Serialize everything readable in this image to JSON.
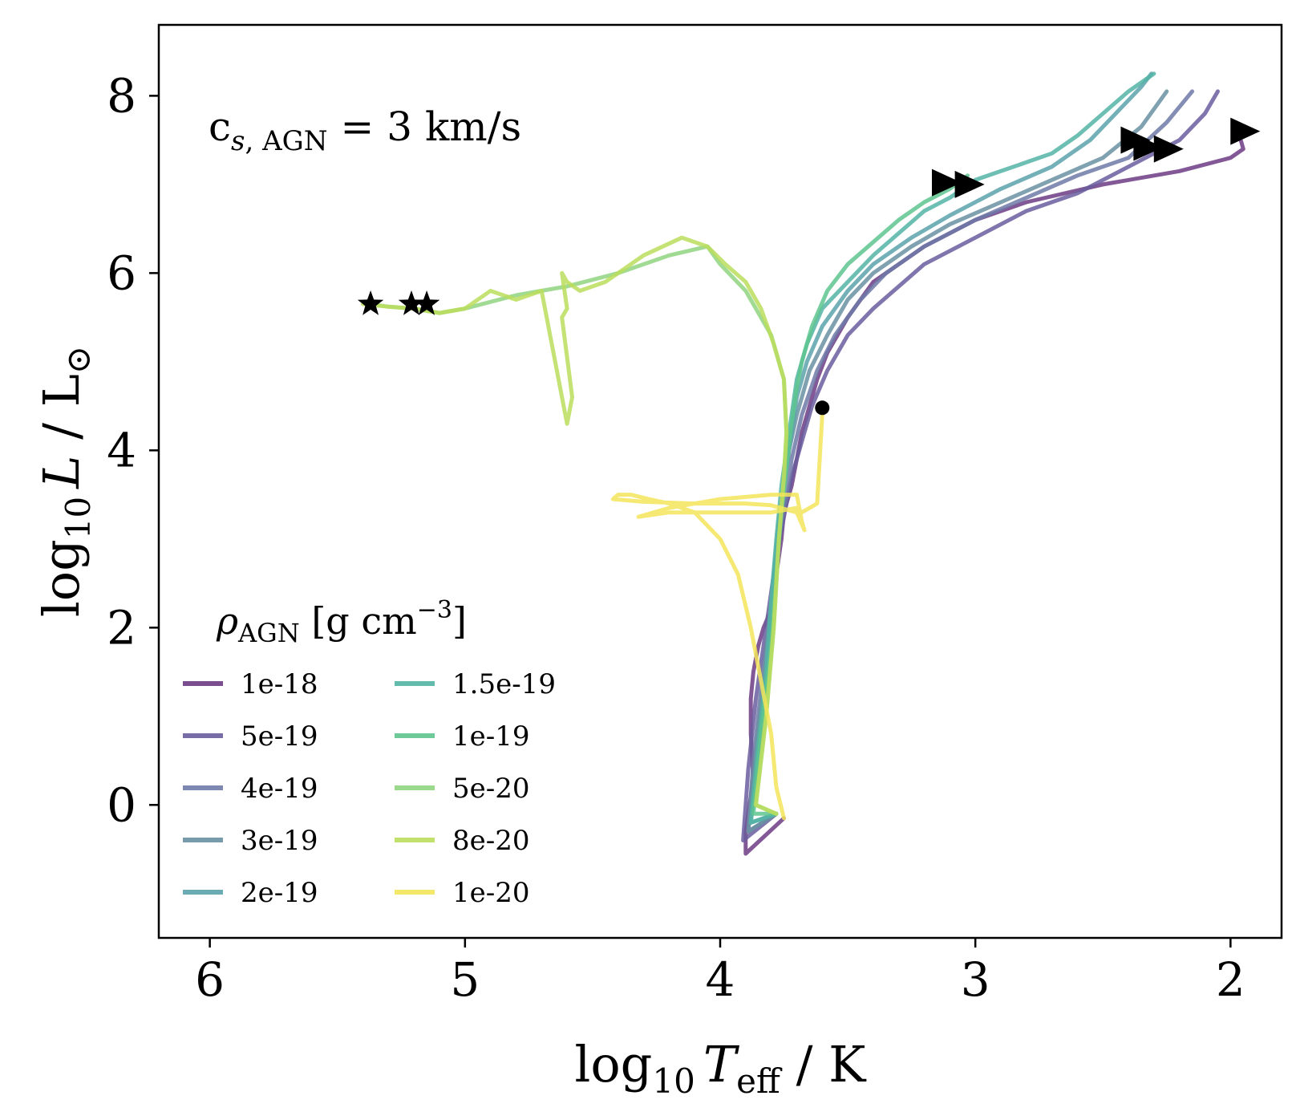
{
  "chart_data": {
    "type": "line",
    "title": "",
    "annotation": {
      "base": "c",
      "sub_italic": "s",
      "sub_rest": ", AGN",
      "rest": " = 3 km/s"
    },
    "xlabel": {
      "prefix": "log",
      "sub": "10",
      "var": "T",
      "var_sub": "eff",
      "suffix": " / K"
    },
    "ylabel": {
      "prefix": "log",
      "sub": "10",
      "var": "L",
      "suffix": " / L",
      "sun": "⊙"
    },
    "xlim": [
      6.2,
      1.8
    ],
    "ylim": [
      -1.5,
      8.8
    ],
    "x_inverted": true,
    "xticks": [
      6,
      5,
      4,
      3,
      2
    ],
    "yticks": [
      0,
      2,
      4,
      6,
      8
    ],
    "x_tick_labels": [
      "6",
      "5",
      "4",
      "3",
      "2"
    ],
    "y_tick_labels": [
      "0",
      "2",
      "4",
      "6",
      "8"
    ],
    "grid": false,
    "legend": {
      "title": {
        "symbol": "ρ",
        "sub": "AGN",
        "unit_open": " [g cm",
        "sup": "−3",
        "unit_close": "]"
      },
      "placement": "lower-left",
      "columns": 2
    },
    "series": [
      {
        "name": "1e-18",
        "color": "#6d3b84",
        "x": [
          3.75,
          3.9,
          3.9,
          3.87,
          3.88,
          3.88,
          3.87,
          3.85,
          3.83,
          3.8,
          3.78,
          3.76,
          3.75,
          3.72,
          3.7,
          3.68,
          3.65,
          3.62,
          3.58,
          3.5,
          3.4,
          3.2,
          3.0,
          2.8,
          2.5,
          2.2,
          2.0,
          1.95,
          1.97
        ],
        "y": [
          -0.15,
          -0.55,
          -0.3,
          0.3,
          0.8,
          1.2,
          1.5,
          1.8,
          2.0,
          2.2,
          2.6,
          3.0,
          3.3,
          3.6,
          3.9,
          4.2,
          4.5,
          4.8,
          5.1,
          5.5,
          5.9,
          6.3,
          6.6,
          6.8,
          7.0,
          7.15,
          7.3,
          7.4,
          7.6
        ]
      },
      {
        "name": "5e-19",
        "color": "#6a5d9e",
        "x": [
          3.78,
          3.91,
          3.89,
          3.86,
          3.84,
          3.82,
          3.8,
          3.78,
          3.76,
          3.74,
          3.72,
          3.68,
          3.64,
          3.58,
          3.5,
          3.4,
          3.2,
          3.0,
          2.8,
          2.6,
          2.4,
          2.2,
          2.1,
          2.05
        ],
        "y": [
          -0.1,
          -0.4,
          0.4,
          1.2,
          1.6,
          2.0,
          2.4,
          2.8,
          3.1,
          3.4,
          3.7,
          4.1,
          4.5,
          4.9,
          5.3,
          5.6,
          6.1,
          6.4,
          6.7,
          6.9,
          7.2,
          7.5,
          7.8,
          8.05
        ]
      },
      {
        "name": "4e-19",
        "color": "#6f7aa8",
        "x": [
          3.78,
          3.89,
          3.87,
          3.84,
          3.82,
          3.8,
          3.78,
          3.76,
          3.74,
          3.72,
          3.68,
          3.62,
          3.55,
          3.45,
          3.35,
          3.2,
          3.0,
          2.8,
          2.6,
          2.4,
          2.25,
          2.15
        ],
        "y": [
          -0.1,
          -0.3,
          0.5,
          1.3,
          1.8,
          2.3,
          2.8,
          3.2,
          3.5,
          3.9,
          4.4,
          4.9,
          5.3,
          5.7,
          6.0,
          6.3,
          6.6,
          6.85,
          7.1,
          7.3,
          7.7,
          8.05
        ]
      },
      {
        "name": "3e-19",
        "color": "#6990a2",
        "x": [
          3.78,
          3.89,
          3.86,
          3.83,
          3.81,
          3.79,
          3.77,
          3.75,
          3.73,
          3.7,
          3.65,
          3.58,
          3.5,
          3.4,
          3.25,
          3.1,
          2.9,
          2.7,
          2.5,
          2.35,
          2.25
        ],
        "y": [
          -0.1,
          -0.3,
          0.6,
          1.4,
          2.0,
          2.6,
          3.2,
          3.6,
          4.0,
          4.4,
          4.9,
          5.3,
          5.7,
          6.0,
          6.3,
          6.55,
          6.8,
          7.05,
          7.3,
          7.65,
          8.05
        ]
      },
      {
        "name": "2e-19",
        "color": "#5aa2ac",
        "x": [
          3.78,
          3.88,
          3.85,
          3.82,
          3.8,
          3.78,
          3.76,
          3.74,
          3.72,
          3.7,
          3.66,
          3.6,
          3.5,
          3.4,
          3.25,
          3.1,
          2.9,
          2.7,
          2.55,
          2.45,
          2.35,
          2.31
        ],
        "y": [
          -0.1,
          -0.2,
          0.6,
          1.4,
          2.1,
          2.8,
          3.4,
          3.8,
          4.2,
          4.6,
          5.0,
          5.4,
          5.8,
          6.1,
          6.4,
          6.65,
          6.95,
          7.2,
          7.5,
          7.8,
          8.1,
          8.25
        ]
      },
      {
        "name": "1.5e-19",
        "color": "#52b4a4",
        "x": [
          3.78,
          3.88,
          3.85,
          3.82,
          3.8,
          3.78,
          3.76,
          3.74,
          3.72,
          3.7,
          3.66,
          3.6,
          3.5,
          3.4,
          3.3,
          3.2,
          3.1,
          3.0,
          2.9,
          2.8,
          2.7,
          2.6,
          2.5,
          2.4,
          2.3
        ],
        "y": [
          -0.1,
          -0.2,
          0.7,
          1.5,
          2.3,
          3.0,
          3.6,
          4.0,
          4.4,
          4.8,
          5.2,
          5.6,
          5.9,
          6.2,
          6.45,
          6.7,
          6.85,
          7.05,
          7.15,
          7.25,
          7.35,
          7.55,
          7.8,
          8.05,
          8.25
        ]
      },
      {
        "name": "1e-19",
        "color": "#5ec48e",
        "x": [
          3.78,
          3.87,
          3.84,
          3.8,
          3.78,
          3.76,
          3.74,
          3.72,
          3.7,
          3.68,
          3.64,
          3.58,
          3.5,
          3.4,
          3.3,
          3.2,
          3.1,
          3.03
        ],
        "y": [
          -0.1,
          -0.1,
          0.8,
          1.8,
          2.6,
          3.3,
          3.8,
          4.3,
          4.7,
          5.0,
          5.4,
          5.8,
          6.1,
          6.35,
          6.6,
          6.8,
          6.95,
          7.1
        ]
      },
      {
        "name": "5e-20",
        "color": "#90d580",
        "x": [
          3.78,
          3.86,
          3.82,
          3.79,
          3.77,
          3.75,
          3.74,
          3.75,
          3.8,
          3.9,
          4.0,
          4.05,
          4.2,
          4.4,
          4.6,
          4.8,
          5.0,
          5.1,
          5.2,
          5.3,
          5.37
        ],
        "y": [
          -0.1,
          0.0,
          1.0,
          2.0,
          3.0,
          3.7,
          4.2,
          4.8,
          5.3,
          5.8,
          6.1,
          6.3,
          6.2,
          6.0,
          5.85,
          5.75,
          5.6,
          5.55,
          5.6,
          5.62,
          5.65
        ]
      },
      {
        "name": "8e-20",
        "color": "#bbdd5c",
        "x": [
          3.78,
          3.86,
          3.82,
          3.79,
          3.77,
          3.75,
          3.74,
          3.75,
          3.79,
          3.84,
          3.9,
          3.98,
          4.05,
          4.15,
          4.3,
          4.4,
          4.45,
          4.55,
          4.6,
          4.62,
          4.6,
          4.62,
          4.58,
          4.6,
          4.7,
          4.8,
          4.9,
          5.0,
          5.1,
          5.2,
          5.3,
          5.4
        ],
        "y": [
          -0.1,
          0.0,
          1.0,
          2.0,
          3.0,
          3.7,
          4.2,
          4.8,
          5.2,
          5.6,
          5.9,
          6.1,
          6.3,
          6.4,
          6.2,
          6.0,
          5.9,
          5.8,
          5.9,
          6.0,
          5.6,
          5.5,
          4.6,
          4.3,
          5.8,
          5.7,
          5.8,
          5.6,
          5.55,
          5.6,
          5.62,
          5.65
        ]
      },
      {
        "name": "1e-20",
        "color": "#f3e55a",
        "x": [
          3.75,
          3.78,
          3.8,
          3.84,
          3.88,
          3.93,
          4.0,
          4.1,
          4.2,
          4.28,
          4.35,
          4.4,
          4.42,
          4.3,
          4.1,
          3.9,
          3.8,
          3.7,
          3.67,
          3.68,
          3.7,
          3.8,
          4.0,
          4.2,
          4.32,
          4.2,
          4.0,
          3.8,
          3.7,
          3.68,
          3.62,
          3.6
        ],
        "y": [
          -0.15,
          0.2,
          0.8,
          1.4,
          2.0,
          2.6,
          3.0,
          3.3,
          3.4,
          3.45,
          3.5,
          3.5,
          3.45,
          3.42,
          3.4,
          3.4,
          3.38,
          3.3,
          3.1,
          3.2,
          3.5,
          3.5,
          3.45,
          3.35,
          3.25,
          3.3,
          3.3,
          3.3,
          3.35,
          3.3,
          3.4,
          4.4
        ]
      }
    ],
    "markers": {
      "stars": [
        {
          "x": 5.37,
          "y": 5.65
        },
        {
          "x": 5.21,
          "y": 5.65
        },
        {
          "x": 5.15,
          "y": 5.65
        }
      ],
      "triangles": [
        {
          "x": 3.12,
          "y": 7.02
        },
        {
          "x": 3.03,
          "y": 7.0
        },
        {
          "x": 2.38,
          "y": 7.5
        },
        {
          "x": 2.33,
          "y": 7.42
        },
        {
          "x": 2.25,
          "y": 7.4
        },
        {
          "x": 1.95,
          "y": 7.6
        }
      ],
      "dots": [
        {
          "x": 3.6,
          "y": 4.48
        }
      ]
    }
  }
}
